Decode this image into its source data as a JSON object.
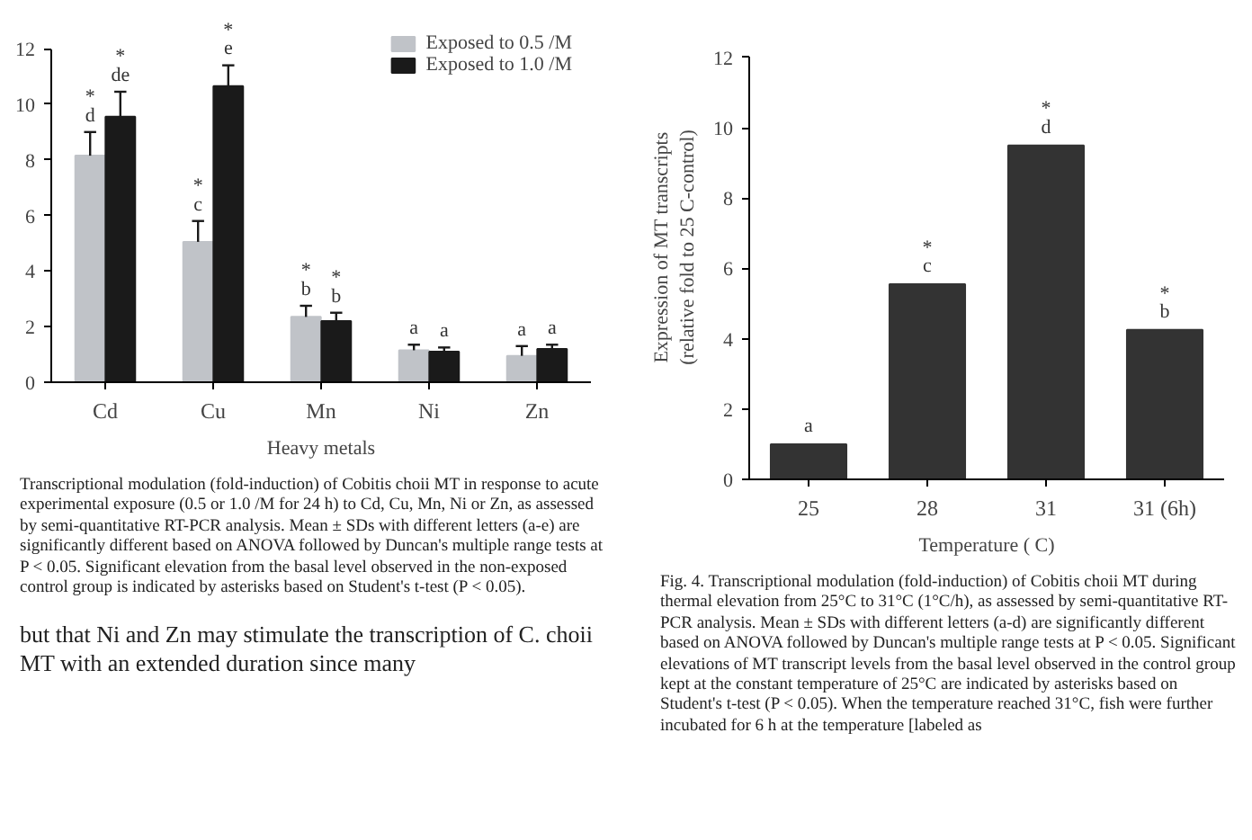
{
  "chart_data": [
    {
      "type": "bar",
      "categories": [
        "Cd",
        "Cu",
        "Mn",
        "Ni",
        "Zn"
      ],
      "xlabel": "Heavy metals",
      "ylim": [
        0,
        12
      ],
      "yticks": [
        0,
        2,
        4,
        6,
        8,
        10,
        12
      ],
      "grid": false,
      "legend": "top right",
      "series": [
        {
          "name": "Exposed to 0.5 /M",
          "color": "#c0c3c8",
          "values": [
            8.15,
            5.05,
            2.35,
            1.15,
            0.95
          ],
          "errors": [
            [
              8.15,
              9.0
            ],
            [
              5.05,
              5.8
            ],
            [
              2.35,
              2.75
            ],
            [
              1.15,
              1.35
            ],
            [
              0.95,
              1.3
            ]
          ],
          "value_labels": [
            "*\nd",
            "*\nc",
            "*\nb",
            "a",
            "a"
          ]
        },
        {
          "name": "Exposed to 1.0 /M",
          "color": "#1a1a1a",
          "values": [
            9.55,
            10.65,
            2.2,
            1.1,
            1.2
          ],
          "errors": [
            [
              9.55,
              10.45
            ],
            [
              10.65,
              11.4
            ],
            [
              2.2,
              2.5
            ],
            [
              1.1,
              1.25
            ],
            [
              1.2,
              1.35
            ]
          ],
          "value_labels": [
            "*\nde",
            "*\ne",
            "*\nb",
            "a",
            "a"
          ]
        }
      ],
      "annotations": [
        "Transcriptional modulation (fold-induction) of Cobitis choii MT in response to acute experimental exposure (0.5 or 1.0 /M for 24 h) to Cd, Cu, Mn, Ni or Zn, as assessed by semi-quantitative RT-PCR analysis. Mean ± SDs with different letters (a-e) are significantly different based on ANOVA followed by Duncan's multiple range tests at P < 0.05. Significant elevation from the basal level observed in the non-exposed control group is indicated by asterisks based on Student's t-test (P < 0.05).",
        "but that Ni and Zn may stimulate the transcription of C. choii MT with an extended duration since many"
      ]
    },
    {
      "type": "bar",
      "categories": [
        "25",
        "28",
        "31",
        "31 (6h)"
      ],
      "xlabel": "Temperature ( C)",
      "ylabel": "Expression of MT transcripts\n(relative fold to 25 C-control)",
      "ylim": [
        0,
        12
      ],
      "yticks": [
        0,
        2,
        4,
        6,
        8,
        10,
        12
      ],
      "grid": false,
      "series": [
        {
          "color": "#333333",
          "values": [
            1.0,
            5.55,
            9.5,
            4.25
          ],
          "value_labels": [
            "a",
            "*\nc",
            "*\nd",
            "*\nb"
          ]
        }
      ],
      "annotations": [
        "Fig. 4. Transcriptional modulation (fold-induction) of Cobitis choii MT during thermal elevation from 25°C to 31°C (1°C/h), as assessed by semi-quantitative RT-PCR analysis. Mean ± SDs with different letters (a-d) are significantly different based on ANOVA followed by Duncan's multiple range tests at P < 0.05. Significant elevations of MT transcript levels from the basal level observed in the control group kept at the constant temperature of 25°C are indicated by asterisks based on Student's t-test (P < 0.05). When the temperature reached 31°C, fish were further incubated for 6 h at the temperature [labeled as"
      ]
    }
  ]
}
